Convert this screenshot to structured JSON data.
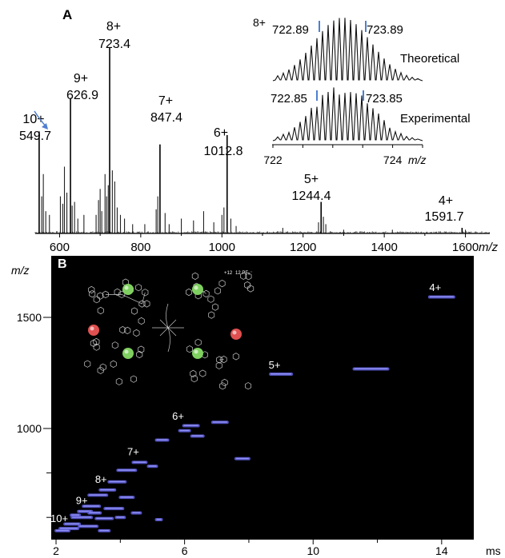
{
  "panel_a": {
    "label": "A",
    "xlabel": "m/z",
    "peaks": [
      {
        "charge": "10+",
        "mz": "549.7"
      },
      {
        "charge": "9+",
        "mz": "626.9"
      },
      {
        "charge": "8+",
        "mz": "723.4"
      },
      {
        "charge": "7+",
        "mz": "847.4"
      },
      {
        "charge": "6+",
        "mz": "1012.8"
      },
      {
        "charge": "5+",
        "mz": "1244.4"
      },
      {
        "charge": "4+",
        "mz": "1591.7"
      }
    ],
    "inset": {
      "charge": "8+",
      "theoretical": {
        "label": "Theoretical",
        "left": "722.89",
        "right": "723.89"
      },
      "experimental": {
        "label": "Experimental",
        "left": "722.85",
        "right": "723.85"
      },
      "xlabel": "m/z"
    }
  },
  "panel_b": {
    "label": "B",
    "ylabel": "m/z",
    "xunit": "ms",
    "charges": [
      "4+",
      "5+",
      "6+",
      "7+",
      "8+",
      "9+",
      "10+"
    ],
    "counterion_label": "12 PF₆⁻",
    "counterion_charge": "+12"
  },
  "colors": {
    "peak": "#111111",
    "band": "#5b5bd6",
    "band_glow": "#a0a0ff",
    "marker": "#4f7fd0",
    "arrow": "#4f7fd0"
  },
  "chart_data": [
    {
      "type": "line",
      "title": "",
      "xlabel": "m/z",
      "ylabel": "",
      "xlim": [
        540,
        1660
      ],
      "xticks": [
        600,
        800,
        1000,
        1200,
        1400,
        1600
      ],
      "peaks": [
        {
          "mz": 549.7,
          "charge": "10+",
          "rel": 0.55
        },
        {
          "mz": 626.9,
          "charge": "9+",
          "rel": 0.73
        },
        {
          "mz": 723.4,
          "charge": "8+",
          "rel": 1.0
        },
        {
          "mz": 847.4,
          "charge": "7+",
          "rel": 0.48
        },
        {
          "mz": 1012.8,
          "charge": "6+",
          "rel": 0.53
        },
        {
          "mz": 1244.4,
          "charge": "5+",
          "rel": 0.17
        },
        {
          "mz": 1591.7,
          "charge": "4+",
          "rel": 0.03
        }
      ]
    },
    {
      "type": "line",
      "title": "",
      "xlabel": "m/z",
      "xlim": [
        722,
        724.5
      ],
      "xticks": [
        722,
        724
      ],
      "series": [
        {
          "name": "Theoretical",
          "markers": [
            722.89,
            723.89
          ]
        },
        {
          "name": "Experimental",
          "markers": [
            722.85,
            723.85
          ]
        }
      ]
    },
    {
      "type": "heatmap",
      "title": "",
      "xlabel": "ms",
      "ylabel": "m/z",
      "xlim": [
        2,
        15
      ],
      "ylim": [
        750,
        1650
      ],
      "xticks": [
        2,
        6,
        10,
        14
      ],
      "yticks": [
        1000,
        1500
      ],
      "bands": [
        {
          "charge": "4+",
          "t": 14.0,
          "mz": 1591.7
        },
        {
          "charge": "5+",
          "t": 9.0,
          "mz": 1244.4
        },
        {
          "charge": "6+",
          "t": 6.2,
          "mz": 1012.8
        },
        {
          "charge": "7+",
          "t": 4.6,
          "mz": 847.4
        },
        {
          "charge": "8+",
          "t": 3.6,
          "mz": 723.4
        },
        {
          "charge": "9+",
          "t": 2.9,
          "mz": 626.9
        },
        {
          "charge": "10+",
          "t": 2.4,
          "mz": 549.7
        }
      ]
    }
  ]
}
